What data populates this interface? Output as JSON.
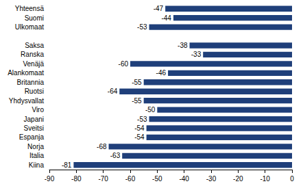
{
  "chart_data": {
    "type": "bar",
    "orientation": "horizontal",
    "categories": [
      "Yhteensä",
      "Suomi",
      "Ulkomaat",
      null,
      "Saksa",
      "Ranska",
      "Venäjä",
      "Alankomaat",
      "Britannia",
      "Ruotsi",
      "Yhdysvallat",
      "Viro",
      "Japani",
      "Sveitsi",
      "Espanja",
      "Norja",
      "Italia",
      "Kiina"
    ],
    "values": [
      -47,
      -44,
      -53,
      null,
      -38,
      -33,
      -60,
      -46,
      -55,
      -64,
      -55,
      -50,
      -53,
      -54,
      -54,
      -68,
      -63,
      -81
    ],
    "color": "#1f3f7a",
    "xlim": [
      -90,
      0
    ],
    "xticks": [
      -90,
      -80,
      -70,
      -60,
      -50,
      -40,
      -30,
      -20,
      -10,
      0
    ],
    "grid": false,
    "data_labels": true
  }
}
